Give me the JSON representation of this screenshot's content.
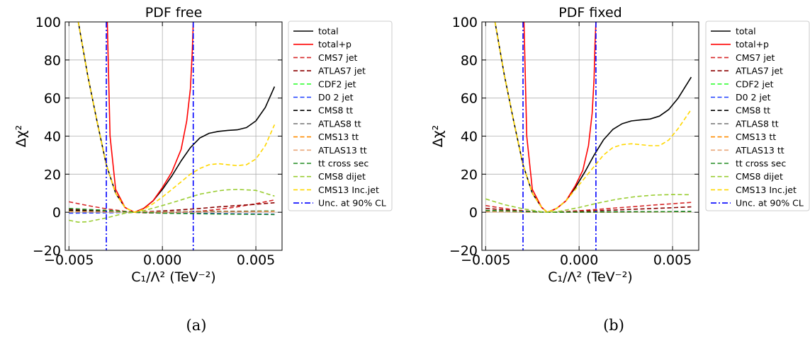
{
  "chart_data": [
    {
      "type": "line",
      "title": "PDF free",
      "caption": "(a)",
      "xlabel": "C₁/Λ² (TeV⁻²)",
      "ylabel": "Δχ²",
      "xlim": [
        -0.0052,
        0.0064
      ],
      "ylim": [
        -20,
        100
      ],
      "xticks": [
        -0.005,
        0.0,
        0.005
      ],
      "xtick_labels": [
        "−0.005",
        "0.000",
        "0.005"
      ],
      "yticks": [
        -20,
        0,
        20,
        40,
        60,
        80,
        100
      ],
      "ytick_labels": [
        "−20",
        "0",
        "20",
        "40",
        "60",
        "80",
        "100"
      ],
      "grid": true,
      "legend_position": "outside-right",
      "series": [
        {
          "name": "total",
          "color": "#000000",
          "style": "solid",
          "x": [
            -0.0045,
            -0.004,
            -0.0035,
            -0.003,
            -0.0025,
            -0.002,
            -0.0015,
            -0.001,
            -0.0005,
            0.0,
            0.0005,
            0.001,
            0.0015,
            0.002,
            0.0025,
            0.003,
            0.0035,
            0.004,
            0.0045,
            0.005,
            0.0055,
            0.006
          ],
          "y": [
            100,
            72,
            48,
            25,
            10,
            2.5,
            0,
            2,
            6,
            12,
            19,
            27,
            34,
            39,
            41.5,
            42.5,
            43,
            43.3,
            44.5,
            48,
            55,
            66
          ]
        },
        {
          "name": "total+p",
          "color": "#ff0000",
          "style": "solid",
          "x": [
            -0.00295,
            -0.0028,
            -0.0025,
            -0.002,
            -0.0015,
            -0.001,
            -0.0005,
            0.0,
            0.0005,
            0.001,
            0.0013,
            0.0015,
            0.0016,
            0.00165
          ],
          "y": [
            100,
            40,
            12,
            2.5,
            0,
            2,
            6,
            13,
            21,
            33,
            48,
            65,
            85,
            100
          ]
        },
        {
          "name": "CMS7 jet",
          "color": "#d62728",
          "style": "dashed",
          "x": [
            -0.005,
            -0.004,
            -0.003,
            -0.002,
            -0.0015,
            -0.001,
            0.0,
            0.001,
            0.002,
            0.003,
            0.004,
            0.005,
            0.006
          ],
          "y": [
            5.5,
            3.5,
            1.8,
            0.5,
            0,
            -0.3,
            -0.4,
            -0.1,
            0.5,
            1.5,
            2.8,
            4.5,
            6.5
          ]
        },
        {
          "name": "ATLAS7 jet",
          "color": "#8b0000",
          "style": "dashed",
          "x": [
            -0.005,
            -0.004,
            -0.003,
            -0.002,
            -0.0015,
            -0.001,
            0.0,
            0.001,
            0.002,
            0.003,
            0.004,
            0.005,
            0.006
          ],
          "y": [
            1.5,
            1.0,
            0.5,
            0.1,
            0,
            0.2,
            0.7,
            1.3,
            2.0,
            2.8,
            3.5,
            4.2,
            5.0
          ]
        },
        {
          "name": "CDF2 jet",
          "color": "#33ff33",
          "style": "dashed",
          "x": [
            -0.005,
            -0.003,
            -0.0015,
            0.0,
            0.002,
            0.004,
            0.006
          ],
          "y": [
            0.6,
            0.3,
            0,
            0.1,
            0.3,
            0.5,
            0.7
          ]
        },
        {
          "name": "D0 2 jet",
          "color": "#1f3fff",
          "style": "dashed",
          "x": [
            -0.005,
            -0.003,
            -0.0015,
            0.0,
            0.002,
            0.004,
            0.006
          ],
          "y": [
            -0.5,
            -0.3,
            0,
            -0.2,
            -0.5,
            -0.8,
            -1.0
          ]
        },
        {
          "name": "CMS8 tt",
          "color": "#000000",
          "style": "dashed",
          "x": [
            -0.005,
            -0.003,
            -0.0015,
            0.0,
            0.002,
            0.004,
            0.006
          ],
          "y": [
            1.0,
            0.5,
            0,
            0.2,
            0.4,
            0.5,
            0.6
          ]
        },
        {
          "name": "ATLAS8 tt",
          "color": "#7f7f7f",
          "style": "dashed",
          "x": [
            -0.005,
            -0.003,
            -0.0015,
            0.0,
            0.002,
            0.004,
            0.006
          ],
          "y": [
            0.3,
            0.1,
            0,
            0.1,
            0.2,
            0.3,
            0.4
          ]
        },
        {
          "name": "CMS13 tt",
          "color": "#ff8c00",
          "style": "dashed",
          "x": [
            -0.005,
            -0.003,
            -0.0015,
            0.0,
            0.002,
            0.004,
            0.006
          ],
          "y": [
            0.4,
            0.2,
            0,
            0.1,
            0.2,
            0.3,
            0.4
          ]
        },
        {
          "name": "ATLAS13 tt",
          "color": "#e9a77a",
          "style": "dashed",
          "x": [
            -0.005,
            -0.003,
            -0.0015,
            0.0,
            0.002,
            0.004,
            0.006
          ],
          "y": [
            0.2,
            0.1,
            0,
            0.1,
            0.1,
            0.2,
            0.2
          ]
        },
        {
          "name": "tt cross sec",
          "color": "#228b22",
          "style": "dashed",
          "x": [
            -0.005,
            -0.003,
            -0.0015,
            0.0,
            0.002,
            0.004,
            0.006
          ],
          "y": [
            2.0,
            1.0,
            0,
            -0.5,
            -0.8,
            -1.0,
            -1.2
          ]
        },
        {
          "name": "CMS8 dijet",
          "color": "#9acd32",
          "style": "dashed",
          "x": [
            -0.005,
            -0.0045,
            -0.004,
            -0.003,
            -0.002,
            -0.0015,
            -0.001,
            0.0,
            0.001,
            0.002,
            0.003,
            0.0035,
            0.004,
            0.005,
            0.006
          ],
          "y": [
            -4.2,
            -5.2,
            -5.0,
            -3.0,
            -0.5,
            0,
            0.8,
            3.5,
            6.5,
            9.5,
            11.3,
            11.8,
            12.0,
            11.5,
            8.5
          ]
        },
        {
          "name": "CMS13 Inc.jet",
          "color": "#ffd700",
          "style": "dashed",
          "x": [
            -0.0045,
            -0.004,
            -0.0035,
            -0.003,
            -0.0025,
            -0.002,
            -0.0015,
            -0.001,
            -0.0005,
            0.0,
            0.0005,
            0.001,
            0.0015,
            0.002,
            0.0025,
            0.003,
            0.0035,
            0.004,
            0.0045,
            0.005,
            0.0055,
            0.006
          ],
          "y": [
            100,
            72,
            48,
            25,
            10,
            2.5,
            0,
            1.5,
            4.5,
            8,
            12,
            16,
            20,
            23,
            25,
            25.5,
            25,
            24.5,
            25,
            28,
            35,
            46
          ]
        },
        {
          "name": "Unc. at 90% CL",
          "color": "#0000ff",
          "style": "dashdot",
          "verticals": [
            -0.003,
            0.00165
          ]
        }
      ]
    },
    {
      "type": "line",
      "title": "PDF fixed",
      "caption": "(b)",
      "xlabel": "C₁/Λ² (TeV⁻²)",
      "ylabel": "Δχ²",
      "xlim": [
        -0.0052,
        0.0064
      ],
      "ylim": [
        -20,
        100
      ],
      "xticks": [
        -0.005,
        0.0,
        0.005
      ],
      "xtick_labels": [
        "−0.005",
        "0.000",
        "0.005"
      ],
      "yticks": [
        -20,
        0,
        20,
        40,
        60,
        80,
        100
      ],
      "ytick_labels": [
        "−20",
        "0",
        "20",
        "40",
        "60",
        "80",
        "100"
      ],
      "grid": true,
      "legend_position": "outside-right",
      "series": [
        {
          "name": "total",
          "color": "#000000",
          "style": "solid",
          "x": [
            -0.0045,
            -0.004,
            -0.0035,
            -0.003,
            -0.0025,
            -0.002,
            -0.0017,
            -0.0012,
            -0.0007,
            -0.0002,
            0.0003,
            0.0008,
            0.0013,
            0.0018,
            0.0023,
            0.0028,
            0.0033,
            0.0038,
            0.0043,
            0.0048,
            0.0053,
            0.006
          ],
          "y": [
            100,
            72,
            48,
            25,
            10,
            2.5,
            0,
            2,
            6,
            13,
            21,
            30,
            38,
            43.5,
            46.5,
            48,
            48.5,
            49,
            50.5,
            54,
            60,
            71
          ]
        },
        {
          "name": "total+p",
          "color": "#ff0000",
          "style": "solid",
          "x": [
            -0.00295,
            -0.0028,
            -0.0025,
            -0.002,
            -0.0017,
            -0.0012,
            -0.0007,
            -0.0002,
            0.0002,
            0.0005,
            0.0007,
            0.0008,
            0.00085,
            0.0009
          ],
          "y": [
            100,
            40,
            12,
            2.5,
            0,
            2,
            6,
            14,
            22,
            35,
            52,
            70,
            88,
            100
          ]
        },
        {
          "name": "CMS7 jet",
          "color": "#d62728",
          "style": "dashed",
          "x": [
            -0.005,
            -0.004,
            -0.003,
            -0.002,
            -0.0017,
            -0.001,
            0.0,
            0.001,
            0.002,
            0.003,
            0.004,
            0.005,
            0.006
          ],
          "y": [
            3.5,
            2.0,
            0.8,
            0.1,
            0,
            0.2,
            0.8,
            1.5,
            2.3,
            3.0,
            3.8,
            4.5,
            5.2
          ]
        },
        {
          "name": "ATLAS7 jet",
          "color": "#8b0000",
          "style": "dashed",
          "x": [
            -0.005,
            -0.003,
            -0.0017,
            0.0,
            0.002,
            0.004,
            0.006
          ],
          "y": [
            2.0,
            0.6,
            0,
            0.5,
            1.2,
            2.0,
            2.8
          ]
        },
        {
          "name": "CDF2 jet",
          "color": "#33ff33",
          "style": "dashed",
          "x": [
            -0.005,
            -0.003,
            -0.0017,
            0.0,
            0.002,
            0.004,
            0.006
          ],
          "y": [
            0.4,
            0.2,
            0,
            0.1,
            0.2,
            0.3,
            0.4
          ]
        },
        {
          "name": "D0 2 jet",
          "color": "#1f3fff",
          "style": "dashed",
          "x": [
            -0.005,
            -0.003,
            -0.0017,
            0.0,
            0.002,
            0.004,
            0.006
          ],
          "y": [
            0.3,
            0.1,
            0,
            0.1,
            0.2,
            0.3,
            0.4
          ]
        },
        {
          "name": "CMS8 tt",
          "color": "#000000",
          "style": "dashed",
          "x": [
            -0.005,
            -0.003,
            -0.0017,
            0.0,
            0.002,
            0.004,
            0.006
          ],
          "y": [
            0.6,
            0.3,
            0,
            0.1,
            0.2,
            0.3,
            0.4
          ]
        },
        {
          "name": "ATLAS8 tt",
          "color": "#7f7f7f",
          "style": "dashed",
          "x": [
            -0.005,
            -0.003,
            -0.0017,
            0.0,
            0.002,
            0.004,
            0.006
          ],
          "y": [
            0.2,
            0.1,
            0,
            0.1,
            0.1,
            0.2,
            0.2
          ]
        },
        {
          "name": "CMS13 tt",
          "color": "#ff8c00",
          "style": "dashed",
          "x": [
            -0.005,
            -0.003,
            -0.0017,
            0.0,
            0.002,
            0.004,
            0.006
          ],
          "y": [
            0.3,
            0.1,
            0,
            0.1,
            0.1,
            0.2,
            0.3
          ]
        },
        {
          "name": "ATLAS13 tt",
          "color": "#e9a77a",
          "style": "dashed",
          "x": [
            -0.005,
            -0.003,
            -0.0017,
            0.0,
            0.002,
            0.004,
            0.006
          ],
          "y": [
            0.2,
            0.1,
            0,
            0.05,
            0.1,
            0.1,
            0.2
          ]
        },
        {
          "name": "tt cross sec",
          "color": "#228b22",
          "style": "dashed",
          "x": [
            -0.005,
            -0.003,
            -0.0017,
            0.0,
            0.002,
            0.004,
            0.006
          ],
          "y": [
            1.0,
            0.5,
            0,
            0.1,
            0.2,
            0.3,
            0.4
          ]
        },
        {
          "name": "CMS8 dijet",
          "color": "#9acd32",
          "style": "dashed",
          "x": [
            -0.005,
            -0.004,
            -0.003,
            -0.002,
            -0.0017,
            -0.001,
            0.0,
            0.001,
            0.002,
            0.003,
            0.004,
            0.005,
            0.006
          ],
          "y": [
            7.0,
            4.0,
            1.8,
            0.3,
            0,
            0.6,
            2.5,
            4.8,
            6.8,
            8.2,
            9.0,
            9.3,
            9.2
          ]
        },
        {
          "name": "CMS13 Inc.jet",
          "color": "#ffd700",
          "style": "dashed",
          "x": [
            -0.0045,
            -0.004,
            -0.0035,
            -0.003,
            -0.0025,
            -0.002,
            -0.0017,
            -0.0012,
            -0.0007,
            -0.0002,
            0.0003,
            0.0008,
            0.0013,
            0.0018,
            0.0023,
            0.0028,
            0.0033,
            0.0038,
            0.0043,
            0.0048,
            0.0053,
            0.006
          ],
          "y": [
            100,
            72,
            48,
            25,
            10,
            2.5,
            0,
            2,
            6,
            12,
            18,
            24,
            30,
            34,
            35.5,
            36,
            35.5,
            35,
            35,
            38,
            44,
            54
          ]
        },
        {
          "name": "Unc. at 90% CL",
          "color": "#0000ff",
          "style": "dashdot",
          "verticals": [
            -0.003,
            0.0009
          ]
        }
      ]
    }
  ]
}
